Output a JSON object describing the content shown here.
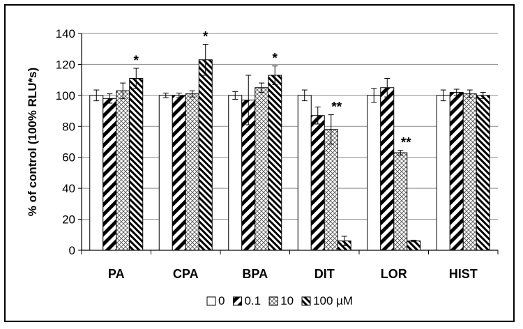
{
  "chart_data": {
    "type": "bar",
    "title": "",
    "xlabel": "",
    "ylabel": "% of control (100% RLU*s)",
    "ylim": [
      0,
      140
    ],
    "yticks": [
      "0",
      "20",
      "40",
      "60",
      "80",
      "100",
      "120",
      "140"
    ],
    "grid": "horizontal",
    "legend_position": "bottom",
    "categories": [
      "PA",
      "CPA",
      "BPA",
      "DIT",
      "LOR",
      "HIST"
    ],
    "series": [
      {
        "name": "0",
        "pattern": "open",
        "values": [
          100,
          100,
          100,
          100,
          100,
          100
        ],
        "errors": [
          3.5,
          1.5,
          2.5,
          3.5,
          4.5,
          3.5
        ]
      },
      {
        "name": "0.1",
        "pattern": "wide-diagonal",
        "values": [
          98,
          100,
          97,
          87,
          105,
          102
        ],
        "errors": [
          3,
          1.5,
          16,
          5.5,
          6,
          2
        ]
      },
      {
        "name": "10",
        "pattern": "crosshatch",
        "values": [
          103,
          101,
          105,
          78,
          63,
          101
        ],
        "errors": [
          5,
          2,
          3,
          9.5,
          1.5,
          2.5
        ]
      },
      {
        "name": "100 µM",
        "pattern": "narrow-diagonal",
        "values": [
          111,
          123,
          113,
          6,
          6,
          100
        ],
        "errors": [
          6.5,
          10,
          6,
          3,
          0.5,
          2
        ]
      }
    ],
    "annotations": [
      {
        "category": "PA",
        "series": "100 µM",
        "text": "*"
      },
      {
        "category": "CPA",
        "series": "100 µM",
        "text": "*"
      },
      {
        "category": "BPA",
        "series": "100 µM",
        "text": "*"
      },
      {
        "category": "DIT",
        "series": "10",
        "text": "**"
      },
      {
        "category": "LOR",
        "series": "10",
        "text": "**"
      }
    ]
  }
}
